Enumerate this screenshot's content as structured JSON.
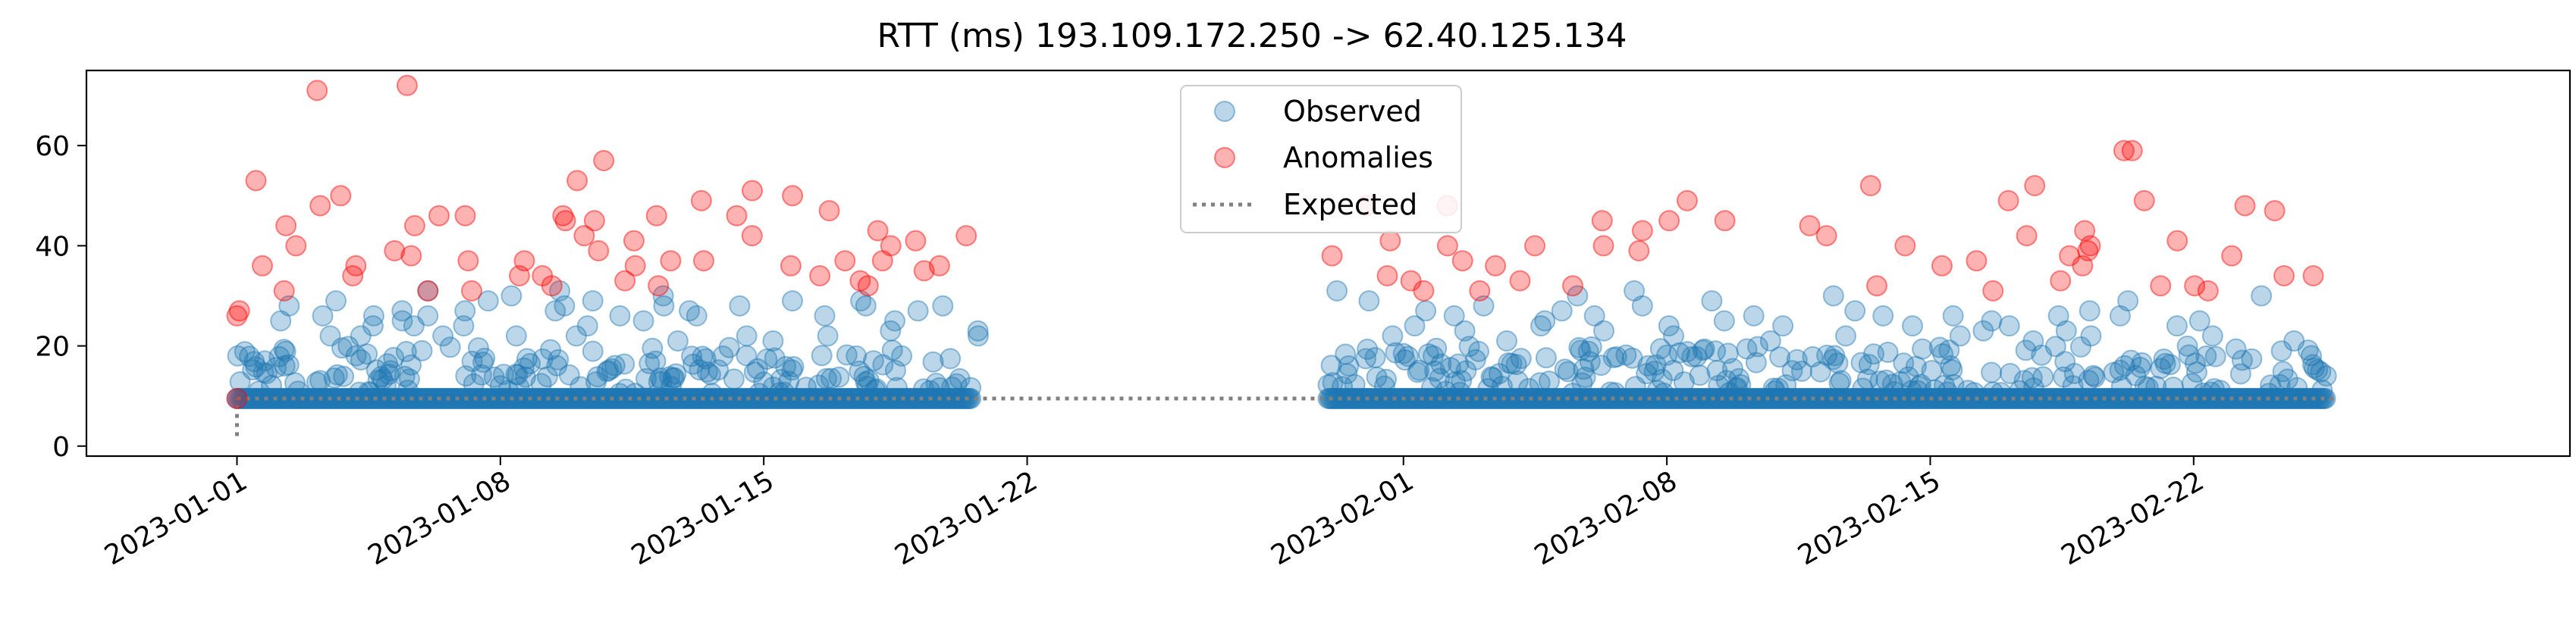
{
  "chart_data": {
    "type": "scatter",
    "title": "RTT (ms) 193.109.172.250 -> 62.40.125.134",
    "xlabel": "",
    "ylabel": "",
    "x_range": [
      "2022-12-28",
      "2023-03-04"
    ],
    "ylim": [
      -2,
      75
    ],
    "grid": false,
    "legend": {
      "placement": "top-center",
      "entries": [
        "Observed",
        "Anomalies",
        "Expected"
      ]
    },
    "x_ticks": [
      "2023-01-01",
      "2023-01-08",
      "2023-01-15",
      "2023-01-22",
      "2023-02-01",
      "2023-02-08",
      "2023-02-15",
      "2023-02-22"
    ],
    "y_ticks": [
      0,
      20,
      40,
      60
    ],
    "colors": {
      "observed": "#1f77b4",
      "anomalies": "#ff0000",
      "expected": "#808080"
    },
    "series": [
      {
        "name": "Observed",
        "segments": [
          {
            "start": "2023-01-01",
            "end": "2023-01-20",
            "baseline": 9.5,
            "upper_band": 20
          },
          {
            "start": "2023-01-30",
            "end": "2023-02-25",
            "baseline": 9.5,
            "upper_band": 20
          }
        ],
        "points": [
          [
            "2023-01-01",
            17
          ],
          [
            "2023-01-01",
            18
          ],
          [
            "2023-01-02",
            16
          ],
          [
            "2023-01-02",
            25
          ],
          [
            "2023-01-02",
            28
          ],
          [
            "2023-01-03",
            29
          ],
          [
            "2023-01-03",
            26
          ],
          [
            "2023-01-03",
            22
          ],
          [
            "2023-01-04",
            22
          ],
          [
            "2023-01-04",
            24
          ],
          [
            "2023-01-04",
            26
          ],
          [
            "2023-01-05",
            25
          ],
          [
            "2023-01-05",
            24
          ],
          [
            "2023-01-05",
            27
          ],
          [
            "2023-01-06",
            22
          ],
          [
            "2023-01-06",
            31
          ],
          [
            "2023-01-06",
            26
          ],
          [
            "2023-01-07",
            27
          ],
          [
            "2023-01-07",
            29
          ],
          [
            "2023-01-07",
            24
          ],
          [
            "2023-01-08",
            30
          ],
          [
            "2023-01-08",
            22
          ],
          [
            "2023-01-09",
            31
          ],
          [
            "2023-01-09",
            28
          ],
          [
            "2023-01-09",
            27
          ],
          [
            "2023-01-10",
            29
          ],
          [
            "2023-01-10",
            22
          ],
          [
            "2023-01-10",
            24
          ],
          [
            "2023-01-11",
            25
          ],
          [
            "2023-01-11",
            26
          ],
          [
            "2023-01-12",
            30
          ],
          [
            "2023-01-12",
            28
          ],
          [
            "2023-01-12",
            21
          ],
          [
            "2023-01-13",
            27
          ],
          [
            "2023-01-13",
            26
          ],
          [
            "2023-01-14",
            28
          ],
          [
            "2023-01-14",
            22
          ],
          [
            "2023-01-15",
            29
          ],
          [
            "2023-01-15",
            21
          ],
          [
            "2023-01-16",
            26
          ],
          [
            "2023-01-16",
            22
          ],
          [
            "2023-01-17",
            28
          ],
          [
            "2023-01-17",
            29
          ],
          [
            "2023-01-18",
            23
          ],
          [
            "2023-01-18",
            25
          ],
          [
            "2023-01-19",
            28
          ],
          [
            "2023-01-19",
            27
          ],
          [
            "2023-01-20",
            22
          ],
          [
            "2023-01-20",
            23
          ],
          [
            "2023-01-30",
            31
          ],
          [
            "2023-01-31",
            29
          ],
          [
            "2023-01-31",
            22
          ],
          [
            "2023-02-01",
            24
          ],
          [
            "2023-02-01",
            27
          ],
          [
            "2023-02-02",
            26
          ],
          [
            "2023-02-02",
            23
          ],
          [
            "2023-02-03",
            28
          ],
          [
            "2023-02-03",
            21
          ],
          [
            "2023-02-04",
            25
          ],
          [
            "2023-02-04",
            24
          ],
          [
            "2023-02-05",
            30
          ],
          [
            "2023-02-05",
            27
          ],
          [
            "2023-02-06",
            26
          ],
          [
            "2023-02-06",
            23
          ],
          [
            "2023-02-07",
            31
          ],
          [
            "2023-02-07",
            28
          ],
          [
            "2023-02-08",
            22
          ],
          [
            "2023-02-08",
            24
          ],
          [
            "2023-02-09",
            29
          ],
          [
            "2023-02-09",
            25
          ],
          [
            "2023-02-10",
            26
          ],
          [
            "2023-02-10",
            21
          ],
          [
            "2023-02-11",
            24
          ],
          [
            "2023-02-12",
            30
          ],
          [
            "2023-02-12",
            22
          ],
          [
            "2023-02-13",
            27
          ],
          [
            "2023-02-13",
            26
          ],
          [
            "2023-02-14",
            24
          ],
          [
            "2023-02-15",
            26
          ],
          [
            "2023-02-15",
            22
          ],
          [
            "2023-02-16",
            23
          ],
          [
            "2023-02-16",
            25
          ],
          [
            "2023-02-17",
            24
          ],
          [
            "2023-02-17",
            21
          ],
          [
            "2023-02-18",
            26
          ],
          [
            "2023-02-18",
            23
          ],
          [
            "2023-02-19",
            27
          ],
          [
            "2023-02-19",
            22
          ],
          [
            "2023-02-20",
            29
          ],
          [
            "2023-02-20",
            26
          ],
          [
            "2023-02-21",
            24
          ],
          [
            "2023-02-22",
            25
          ],
          [
            "2023-02-22",
            22
          ],
          [
            "2023-02-23",
            30
          ],
          [
            "2023-02-24",
            21
          ],
          [
            "2023-02-24",
            19
          ],
          [
            "2023-02-25",
            14
          ]
        ]
      },
      {
        "name": "Anomalies",
        "points": [
          [
            "2023-01-01",
            53
          ],
          [
            "2023-01-01",
            36
          ],
          [
            "2023-01-01",
            27
          ],
          [
            "2023-01-01",
            26
          ],
          [
            "2023-01-01",
            9.5
          ],
          [
            "2023-01-02",
            31
          ],
          [
            "2023-01-02",
            40
          ],
          [
            "2023-01-02",
            44
          ],
          [
            "2023-01-03",
            48
          ],
          [
            "2023-01-03",
            50
          ],
          [
            "2023-01-03",
            71
          ],
          [
            "2023-01-04",
            34
          ],
          [
            "2023-01-04",
            36
          ],
          [
            "2023-01-05",
            38
          ],
          [
            "2023-01-05",
            39
          ],
          [
            "2023-01-05",
            44
          ],
          [
            "2023-01-05",
            72
          ],
          [
            "2023-01-06",
            31
          ],
          [
            "2023-01-06",
            46
          ],
          [
            "2023-01-07",
            37
          ],
          [
            "2023-01-07",
            46
          ],
          [
            "2023-01-07",
            31
          ],
          [
            "2023-01-08",
            37
          ],
          [
            "2023-01-08",
            34
          ],
          [
            "2023-01-09",
            46
          ],
          [
            "2023-01-09",
            45
          ],
          [
            "2023-01-09",
            34
          ],
          [
            "2023-01-09",
            32
          ],
          [
            "2023-01-10",
            57
          ],
          [
            "2023-01-10",
            53
          ],
          [
            "2023-01-10",
            45
          ],
          [
            "2023-01-10",
            42
          ],
          [
            "2023-01-10",
            39
          ],
          [
            "2023-01-11",
            36
          ],
          [
            "2023-01-11",
            33
          ],
          [
            "2023-01-11",
            41
          ],
          [
            "2023-01-12",
            46
          ],
          [
            "2023-01-12",
            37
          ],
          [
            "2023-01-12",
            32
          ],
          [
            "2023-01-13",
            49
          ],
          [
            "2023-01-13",
            37
          ],
          [
            "2023-01-14",
            51
          ],
          [
            "2023-01-14",
            42
          ],
          [
            "2023-01-14",
            46
          ],
          [
            "2023-01-15",
            50
          ],
          [
            "2023-01-15",
            36
          ],
          [
            "2023-01-16",
            34
          ],
          [
            "2023-01-16",
            47
          ],
          [
            "2023-01-17",
            32
          ],
          [
            "2023-01-17",
            33
          ],
          [
            "2023-01-17",
            37
          ],
          [
            "2023-01-18",
            40
          ],
          [
            "2023-01-18",
            43
          ],
          [
            "2023-01-18",
            37
          ],
          [
            "2023-01-19",
            36
          ],
          [
            "2023-01-19",
            41
          ],
          [
            "2023-01-19",
            35
          ],
          [
            "2023-01-20",
            42
          ],
          [
            "2023-01-30",
            38
          ],
          [
            "2023-01-31",
            48
          ],
          [
            "2023-01-31",
            41
          ],
          [
            "2023-01-31",
            34
          ],
          [
            "2023-02-01",
            31
          ],
          [
            "2023-02-01",
            33
          ],
          [
            "2023-02-02",
            48
          ],
          [
            "2023-02-02",
            37
          ],
          [
            "2023-02-02",
            40
          ],
          [
            "2023-02-03",
            31
          ],
          [
            "2023-02-03",
            36
          ],
          [
            "2023-02-04",
            33
          ],
          [
            "2023-02-04",
            40
          ],
          [
            "2023-02-05",
            32
          ],
          [
            "2023-02-06",
            40
          ],
          [
            "2023-02-06",
            45
          ],
          [
            "2023-02-07",
            39
          ],
          [
            "2023-02-07",
            43
          ],
          [
            "2023-02-08",
            49
          ],
          [
            "2023-02-08",
            45
          ],
          [
            "2023-02-09",
            45
          ],
          [
            "2023-02-11",
            44
          ],
          [
            "2023-02-12",
            42
          ],
          [
            "2023-02-13",
            52
          ],
          [
            "2023-02-13",
            32
          ],
          [
            "2023-02-14",
            40
          ],
          [
            "2023-02-15",
            36
          ],
          [
            "2023-02-16",
            37
          ],
          [
            "2023-02-16",
            31
          ],
          [
            "2023-02-17",
            42
          ],
          [
            "2023-02-17",
            49
          ],
          [
            "2023-02-17",
            52
          ],
          [
            "2023-02-18",
            38
          ],
          [
            "2023-02-18",
            33
          ],
          [
            "2023-02-19",
            39
          ],
          [
            "2023-02-19",
            40
          ],
          [
            "2023-02-19",
            43
          ],
          [
            "2023-02-19",
            36
          ],
          [
            "2023-02-20",
            59
          ],
          [
            "2023-02-20",
            59
          ],
          [
            "2023-02-20",
            49
          ],
          [
            "2023-02-21",
            41
          ],
          [
            "2023-02-21",
            32
          ],
          [
            "2023-02-22",
            32
          ],
          [
            "2023-02-22",
            31
          ],
          [
            "2023-02-23",
            48
          ],
          [
            "2023-02-23",
            38
          ],
          [
            "2023-02-24",
            47
          ],
          [
            "2023-02-24",
            34
          ],
          [
            "2023-02-25",
            34
          ]
        ]
      },
      {
        "name": "Expected",
        "style": "dotted",
        "points": [
          [
            "2023-01-01",
            2
          ],
          [
            "2023-01-01",
            9.5
          ],
          [
            "2023-02-25",
            9.5
          ]
        ]
      }
    ]
  }
}
